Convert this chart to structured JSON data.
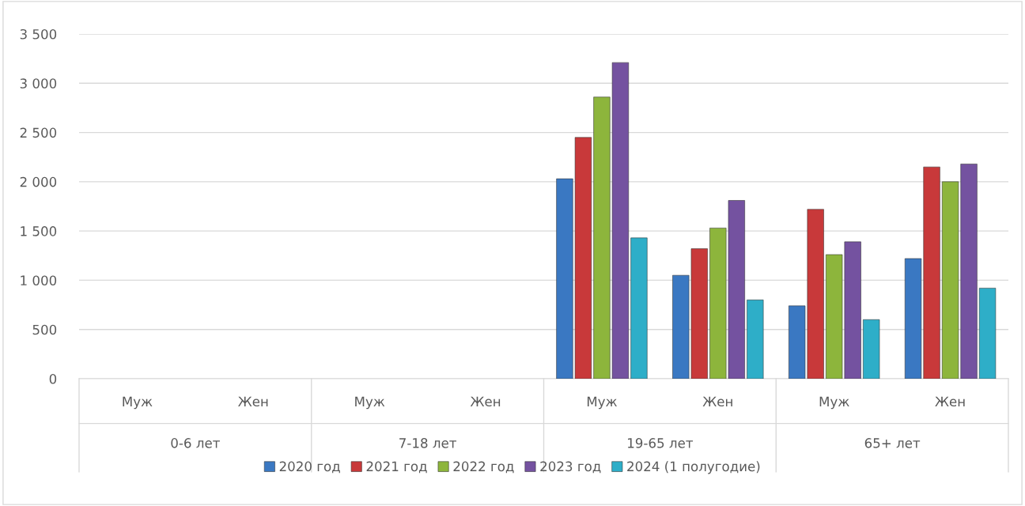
{
  "chart_data": {
    "type": "bar",
    "categories": [
      "Муж",
      "Жен",
      "Муж",
      "Жен",
      "Муж",
      "Жен",
      "Муж",
      "Жен"
    ],
    "annotations": [
      "0-6 лет",
      "7-18 лет",
      "19-65 лет",
      "65+ лет"
    ],
    "series": [
      {
        "name": "2020 год",
        "color": "#3a78c2",
        "values": [
          null,
          null,
          null,
          null,
          2030,
          1050,
          740,
          1220
        ]
      },
      {
        "name": "2021 год",
        "color": "#c8393a",
        "values": [
          null,
          null,
          null,
          null,
          2450,
          1320,
          1720,
          2150
        ]
      },
      {
        "name": "2022 год",
        "color": "#8db53c",
        "values": [
          null,
          null,
          null,
          null,
          2860,
          1530,
          1260,
          2000
        ]
      },
      {
        "name": "2023 год",
        "color": "#7452a0",
        "values": [
          null,
          null,
          null,
          null,
          3210,
          1810,
          1390,
          2180
        ]
      },
      {
        "name": "2024 (1 полугодие)",
        "color": "#2eaec8",
        "values": [
          null,
          null,
          null,
          null,
          1430,
          800,
          600,
          920
        ]
      }
    ],
    "ylim": [
      0,
      3500
    ],
    "yticks": [
      0,
      500,
      1000,
      1500,
      2000,
      2500,
      3000,
      3500
    ],
    "grid": "y",
    "legend": "bottom"
  }
}
